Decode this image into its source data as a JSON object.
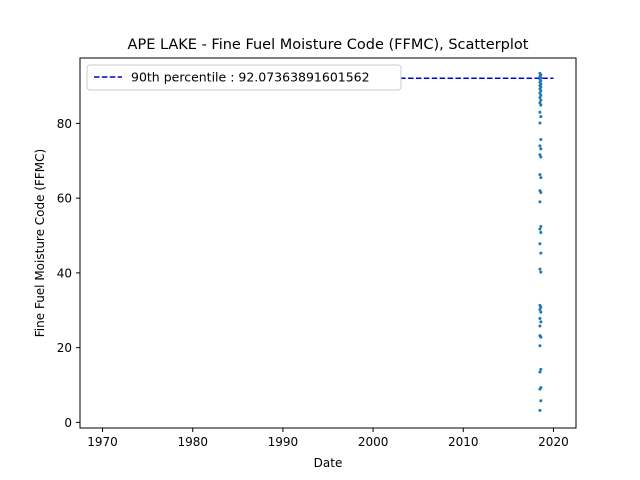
{
  "chart_data": {
    "type": "scatter",
    "title": "APE LAKE - Fine Fuel Moisture Code (FFMC), Scatterplot",
    "xlabel": "Date",
    "ylabel": "Fine Fuel Moisture Code (FFMC)",
    "xlim": [
      1967.5,
      2022.5
    ],
    "ylim": [
      -1.5,
      97.5
    ],
    "x_ticks": [
      1970,
      1980,
      1990,
      2000,
      2010,
      2020
    ],
    "y_ticks": [
      0,
      20,
      40,
      60,
      80
    ],
    "grid": false,
    "legend_position": "top-left",
    "series": [
      {
        "color": "#1f77b4",
        "marker": "dot",
        "points": [
          [
            2018.5,
            3.2
          ],
          [
            2018.6,
            5.8
          ],
          [
            2018.5,
            8.9
          ],
          [
            2018.6,
            9.3
          ],
          [
            2018.5,
            13.5
          ],
          [
            2018.6,
            14.2
          ],
          [
            2018.5,
            20.5
          ],
          [
            2018.6,
            22.8
          ],
          [
            2018.5,
            23.2
          ],
          [
            2018.5,
            25.8
          ],
          [
            2018.6,
            26.9
          ],
          [
            2018.5,
            27.8
          ],
          [
            2018.6,
            29.5
          ],
          [
            2018.5,
            30.2
          ],
          [
            2018.6,
            30.8
          ],
          [
            2018.5,
            31.3
          ],
          [
            2018.6,
            40.2
          ],
          [
            2018.5,
            41.0
          ],
          [
            2018.6,
            45.3
          ],
          [
            2018.5,
            47.8
          ],
          [
            2018.6,
            50.8
          ],
          [
            2018.5,
            51.7
          ],
          [
            2018.6,
            52.4
          ],
          [
            2018.5,
            59.0
          ],
          [
            2018.6,
            61.5
          ],
          [
            2018.5,
            62.0
          ],
          [
            2018.6,
            65.5
          ],
          [
            2018.5,
            66.3
          ],
          [
            2018.6,
            71.0
          ],
          [
            2018.5,
            71.6
          ],
          [
            2018.6,
            73.2
          ],
          [
            2018.5,
            74.0
          ],
          [
            2018.6,
            75.7
          ],
          [
            2018.5,
            80.1
          ],
          [
            2018.6,
            81.8
          ],
          [
            2018.5,
            83.0
          ],
          [
            2018.6,
            84.9
          ],
          [
            2018.5,
            85.5
          ],
          [
            2018.6,
            86.2
          ],
          [
            2018.5,
            86.9
          ],
          [
            2018.6,
            87.5
          ],
          [
            2018.5,
            88.1
          ],
          [
            2018.6,
            88.7
          ],
          [
            2018.5,
            89.2
          ],
          [
            2018.6,
            89.7
          ],
          [
            2018.5,
            90.1
          ],
          [
            2018.6,
            90.5
          ],
          [
            2018.5,
            91.0
          ],
          [
            2018.6,
            91.4
          ],
          [
            2018.5,
            91.8
          ],
          [
            2018.6,
            92.2
          ],
          [
            2018.5,
            92.6
          ],
          [
            2018.6,
            93.0
          ],
          [
            2018.5,
            93.4
          ]
        ]
      }
    ],
    "reference_line": {
      "label": "90th percentile : 92.07363891601562",
      "y": 92.07363891601562,
      "x_start": 2003,
      "x_end": 2020,
      "color": "#0000cc",
      "style": "dashed"
    }
  }
}
